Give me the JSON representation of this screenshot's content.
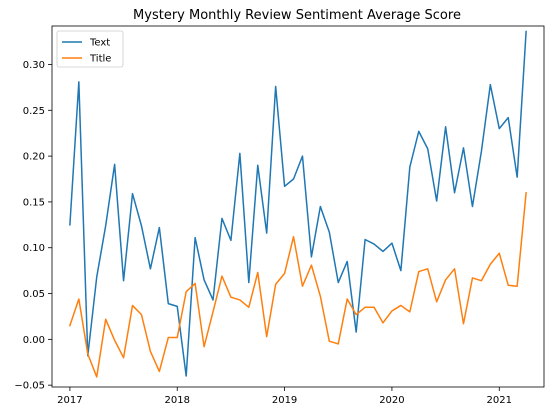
{
  "chart_data": {
    "type": "line",
    "title": "Mystery Monthly Review Sentiment Average Score",
    "xlabel": "",
    "ylabel": "",
    "x_start": "2017-01",
    "x_ticks": [
      "2017",
      "2018",
      "2019",
      "2020",
      "2021"
    ],
    "xlim": [
      "2016-11",
      "2021-06"
    ],
    "y_ticks": [
      "−0.05",
      "0.00",
      "0.05",
      "0.10",
      "0.15",
      "0.20",
      "0.25",
      "0.30"
    ],
    "ylim": [
      -0.052,
      0.342
    ],
    "legend": {
      "position": "top-left"
    },
    "grid": false,
    "series": [
      {
        "name": "Text",
        "color": "#1f77b4",
        "values": [
          0.125,
          0.281,
          -0.018,
          0.068,
          0.124,
          0.191,
          0.064,
          0.159,
          0.124,
          0.077,
          0.122,
          0.039,
          0.036,
          -0.04,
          0.111,
          0.065,
          0.043,
          0.132,
          0.108,
          0.203,
          0.062,
          0.19,
          0.116,
          0.276,
          0.167,
          0.175,
          0.2,
          0.09,
          0.145,
          0.117,
          0.062,
          0.085,
          0.008,
          0.109,
          0.104,
          0.096,
          0.105,
          0.075,
          0.188,
          0.227,
          0.208,
          0.151,
          0.232,
          0.16,
          0.209,
          0.145,
          0.205,
          0.278,
          0.23,
          0.242,
          0.177,
          0.336
        ]
      },
      {
        "name": "Title",
        "color": "#ff7f0e",
        "values": [
          0.015,
          0.044,
          -0.016,
          -0.041,
          0.022,
          -0.001,
          -0.02,
          0.037,
          0.027,
          -0.013,
          -0.035,
          0.002,
          0.002,
          0.052,
          0.061,
          -0.008,
          0.03,
          0.069,
          0.046,
          0.043,
          0.035,
          0.073,
          0.003,
          0.06,
          0.072,
          0.112,
          0.058,
          0.081,
          0.047,
          -0.002,
          -0.005,
          0.044,
          0.027,
          0.035,
          0.035,
          0.018,
          0.031,
          0.037,
          0.03,
          0.074,
          0.077,
          0.041,
          0.065,
          0.077,
          0.017,
          0.067,
          0.064,
          0.082,
          0.094,
          0.059,
          0.058,
          0.16
        ]
      }
    ]
  }
}
